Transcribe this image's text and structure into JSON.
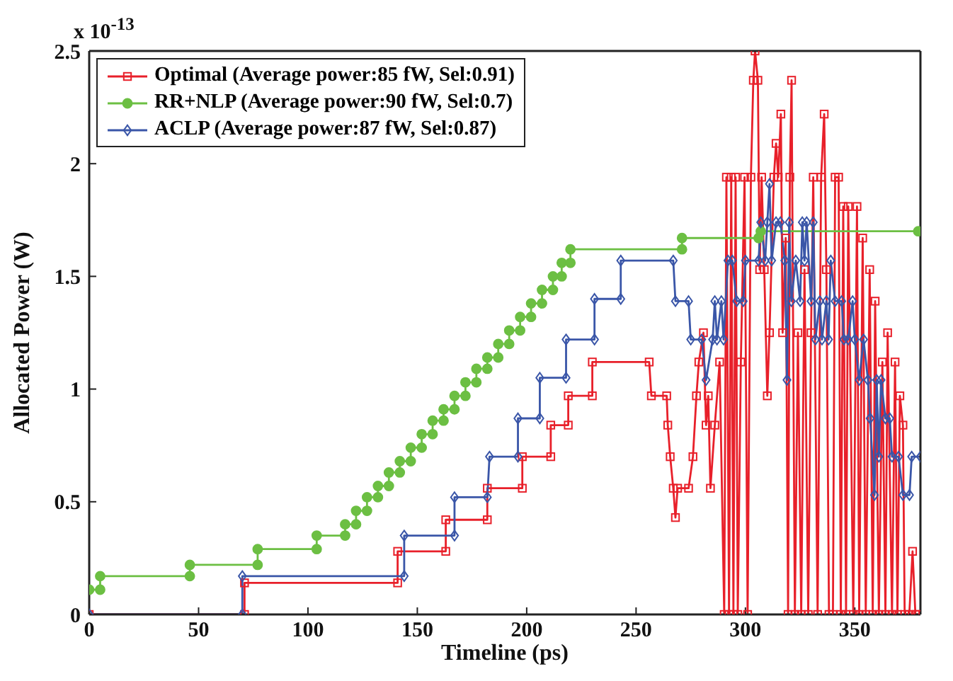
{
  "chart_data": {
    "type": "line",
    "xlabel": "Timeline (ps)",
    "ylabel": "Allocated Power (W)",
    "annotations": [
      "x 10$^{-13}$"
    ],
    "xlim": [
      0,
      380
    ],
    "xticks": [
      0,
      50,
      100,
      150,
      200,
      250,
      300,
      350
    ],
    "ylim": [
      0,
      2.5
    ],
    "yticks": [
      0,
      0.5,
      1,
      1.5,
      2,
      2.5
    ],
    "grid": false,
    "legend": "top left",
    "line_style": "solid",
    "series": [
      {
        "name": "Optimal (Average power:85 fW, Sel:0.91)",
        "color": "#e8202a",
        "marker": "square",
        "x": [
          0,
          71,
          71,
          141,
          141,
          163,
          163,
          182,
          182,
          198,
          198,
          211,
          211,
          219,
          219,
          230,
          230,
          256,
          257,
          264,
          264.5,
          265.6,
          267,
          268,
          269,
          274,
          276,
          277.6,
          278.7,
          280.8,
          282,
          283,
          284,
          286,
          288.2,
          290.3,
          291.3,
          292.5,
          293.5,
          294.5,
          295.5,
          296.5,
          297.9,
          299.6,
          301,
          302.5,
          303.6,
          304.4,
          305.7,
          306.5,
          307.4,
          308.6,
          310,
          311,
          313,
          314,
          315,
          316.2,
          317,
          318.4,
          319.5,
          320.3,
          321.1,
          322.6,
          324,
          325.5,
          327,
          328.7,
          330,
          331,
          333,
          334.6,
          336,
          337,
          338.2,
          340,
          341,
          342.6,
          343.6,
          344.7,
          346,
          347,
          349.3,
          351,
          352,
          353.6,
          355,
          356.8,
          358.2,
          359.3,
          361,
          362.6,
          364,
          365,
          367,
          368.4,
          369.5,
          370.6,
          372,
          372.8,
          374.9,
          376.4,
          377.7,
          379
        ],
        "values": [
          0,
          0,
          0.14,
          0.14,
          0.28,
          0.28,
          0.42,
          0.42,
          0.56,
          0.56,
          0.7,
          0.7,
          0.84,
          0.84,
          0.97,
          0.97,
          1.12,
          1.12,
          0.97,
          0.97,
          0.84,
          0.7,
          0.56,
          0.43,
          0.56,
          0.56,
          0.7,
          0.97,
          1.12,
          1.25,
          0.84,
          0.97,
          0.56,
          0.84,
          1.12,
          0,
          1.94,
          0,
          1.94,
          0,
          1.94,
          0,
          1.12,
          1.94,
          0,
          1.94,
          2.37,
          2.5,
          2.37,
          1.53,
          1.94,
          1.53,
          0.97,
          1.25,
          1.94,
          2.09,
          1.94,
          2.22,
          1.25,
          1.67,
          0,
          1.94,
          2.37,
          0,
          1.25,
          0,
          1.53,
          0,
          1.25,
          1.94,
          0,
          1.94,
          2.22,
          1.53,
          0,
          0,
          1.94,
          1.94,
          0,
          1.81,
          0,
          1.81,
          0,
          1.81,
          0,
          1.67,
          0,
          1.53,
          0,
          1.39,
          0,
          1.12,
          0,
          1.25,
          0,
          1.12,
          0,
          0.97,
          0.84,
          0,
          0,
          0.28,
          0,
          0
        ]
      },
      {
        "name": "RR+NLP (Average power:90 fW, Sel:0.7)",
        "color": "#6cbf43",
        "marker": "circle",
        "x": [
          0,
          5,
          5,
          46,
          46,
          77,
          77,
          104,
          104,
          117,
          117,
          122,
          122,
          127,
          127,
          132,
          132,
          137,
          137,
          142,
          142,
          147,
          147,
          152,
          152,
          157,
          157,
          162,
          162,
          167,
          167,
          172,
          172,
          177,
          177,
          182,
          182,
          187,
          187,
          192,
          192,
          197,
          197,
          202,
          202,
          207,
          207,
          212,
          212,
          216,
          216,
          220,
          220,
          271,
          271,
          306,
          307,
          379
        ],
        "values": [
          0.11,
          0.11,
          0.17,
          0.17,
          0.22,
          0.22,
          0.29,
          0.29,
          0.35,
          0.35,
          0.4,
          0.4,
          0.46,
          0.46,
          0.52,
          0.52,
          0.57,
          0.57,
          0.63,
          0.63,
          0.68,
          0.68,
          0.74,
          0.74,
          0.8,
          0.8,
          0.86,
          0.86,
          0.91,
          0.91,
          0.97,
          0.97,
          1.03,
          1.03,
          1.09,
          1.09,
          1.14,
          1.14,
          1.2,
          1.2,
          1.26,
          1.26,
          1.32,
          1.32,
          1.38,
          1.38,
          1.44,
          1.44,
          1.5,
          1.5,
          1.56,
          1.56,
          1.62,
          1.62,
          1.67,
          1.67,
          1.7,
          1.7
        ]
      },
      {
        "name": "ACLP (Average power:87 fW, Sel:0.87)",
        "color": "#3a56a8",
        "marker": "diamond",
        "x": [
          0,
          70,
          70,
          144,
          144,
          167,
          167,
          182,
          183,
          196,
          196,
          206,
          206,
          218,
          218,
          231,
          231,
          243,
          243,
          267,
          268,
          274,
          275,
          280,
          282,
          285,
          286,
          287,
          289,
          290,
          292,
          294,
          296,
          299,
          300,
          306,
          307,
          309,
          310,
          311,
          312,
          314,
          316,
          318,
          319,
          320,
          321,
          323,
          325,
          326,
          327,
          328,
          330,
          331,
          332,
          334,
          335,
          337,
          338,
          339,
          341,
          344,
          345,
          347,
          349,
          350,
          352,
          354,
          356,
          357,
          359,
          360,
          361,
          362,
          364,
          366,
          367,
          370,
          372,
          375,
          376,
          380
        ],
        "values": [
          0,
          0,
          0.17,
          0.17,
          0.35,
          0.35,
          0.52,
          0.52,
          0.7,
          0.7,
          0.87,
          0.87,
          1.05,
          1.05,
          1.22,
          1.22,
          1.4,
          1.4,
          1.57,
          1.57,
          1.39,
          1.39,
          1.22,
          1.22,
          1.04,
          1.22,
          1.39,
          1.22,
          1.39,
          1.22,
          1.57,
          1.57,
          1.39,
          1.39,
          1.57,
          1.57,
          1.74,
          1.57,
          1.74,
          1.91,
          1.57,
          1.74,
          1.74,
          1.57,
          1.04,
          1.74,
          1.39,
          1.57,
          1.39,
          1.74,
          1.57,
          1.74,
          1.39,
          1.74,
          1.22,
          1.39,
          1.22,
          1.39,
          1.22,
          1.57,
          1.39,
          1.39,
          1.22,
          1.22,
          1.39,
          1.22,
          1.04,
          1.22,
          1.04,
          0.87,
          0.53,
          1.04,
          0.7,
          1.04,
          0.87,
          0.87,
          0.7,
          0.7,
          0.53,
          0.53,
          0.7,
          0.7
        ]
      }
    ]
  }
}
